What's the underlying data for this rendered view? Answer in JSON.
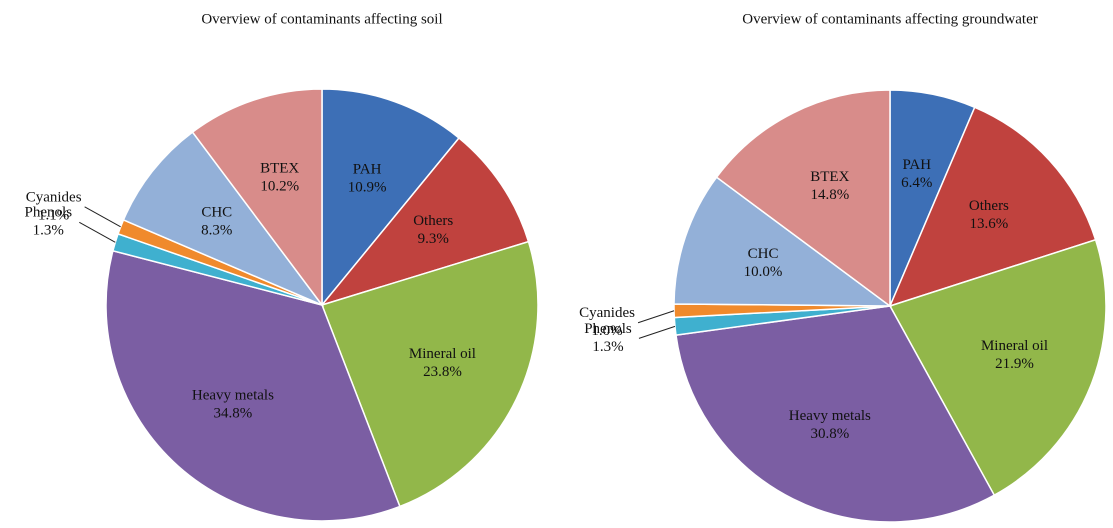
{
  "chart_data": [
    {
      "type": "pie",
      "title": "Overview of contaminants affecting soil",
      "categories": [
        "PAH",
        "Others",
        "Mineral oil",
        "Heavy metals",
        "Phenols",
        "Cyanides",
        "CHC",
        "BTEX"
      ],
      "values": [
        10.9,
        9.3,
        23.8,
        34.8,
        1.3,
        1.1,
        8.3,
        10.2
      ],
      "value_labels": [
        "10.9%",
        "9.3%",
        "23.8%",
        "34.8%",
        "1.3%",
        "1.1%",
        "8.3%",
        "10.2%"
      ],
      "colors": [
        "#3d6fb6",
        "#c0423e",
        "#92b74a",
        "#7b5ea3",
        "#3fb0cf",
        "#f08a2c",
        "#93b0d8",
        "#d88c8a"
      ]
    },
    {
      "type": "pie",
      "title": "Overview of contaminants affecting groundwater",
      "categories": [
        "PAH",
        "Others",
        "Mineral oil",
        "Heavy metals",
        "Phenols",
        "Cyanides",
        "CHC",
        "BTEX"
      ],
      "values": [
        6.4,
        13.6,
        21.9,
        30.8,
        1.3,
        1.0,
        10.0,
        14.8
      ],
      "value_labels": [
        "6.4%",
        "13.6%",
        "21.9%",
        "30.8%",
        "1.3%",
        "1.0%",
        "10.0%",
        "14.8%"
      ],
      "colors": [
        "#3d6fb6",
        "#c0423e",
        "#92b74a",
        "#7b5ea3",
        "#3fb0cf",
        "#f08a2c",
        "#93b0d8",
        "#d88c8a"
      ]
    }
  ]
}
